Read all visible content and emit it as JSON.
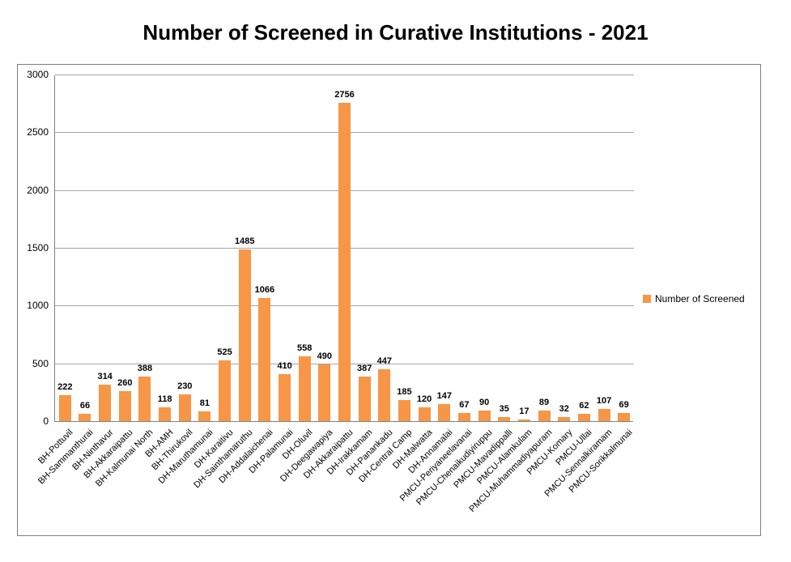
{
  "page": {
    "title": "Number of Screened in Curative Institutions - 2021"
  },
  "chart_data": {
    "type": "bar",
    "title": "Number of Screened in Curative Institutions - 2021",
    "categories": [
      "BH-Pottuvil",
      "BH-Sammanthurai",
      "BH-Ninthavur",
      "BH-Akkaraipattu",
      "BH-Kalmunai North",
      "BH-AMH",
      "BH-Thirukovil",
      "DH-Maruthamunai",
      "DH-Karaitivu",
      "DH-Sainthamaruthu",
      "DH-Addalaichenai",
      "DH-Palamunai",
      "DH-Oluvil",
      "DH-Deegawapiya",
      "DH-Akkaraipattu",
      "DH-Irakkamam",
      "DH-Panankadu",
      "DH-Central Camp",
      "DH-Malwatta",
      "DH-Annamalai",
      "PMCU-Periyaneelavanai",
      "PMCU-Chenaikudiyiruppu",
      "PMCU-Mavadippalli",
      "PMCU-Alamkulam",
      "PMCU-Muhammadiyapuram",
      "PMCU-Komary",
      "PMCU-Ullai",
      "PMCU-Sennalkiramam",
      "PMCU-Sorikkalmunai"
    ],
    "values": [
      222,
      66,
      314,
      260,
      388,
      118,
      230,
      81,
      525,
      1485,
      1066,
      410,
      558,
      490,
      2756,
      387,
      447,
      185,
      120,
      147,
      67,
      90,
      35,
      17,
      89,
      32,
      62,
      107,
      69
    ],
    "series_name": "Number of Screened",
    "legend": {
      "label": "Number of Screened",
      "position": "right"
    },
    "xlabel": "",
    "ylabel": "",
    "ylim": [
      0,
      3000
    ],
    "yticks": [
      0,
      500,
      1000,
      1500,
      2000,
      2500,
      3000
    ],
    "grid": true,
    "colors": {
      "bar": "#F79646",
      "gridline": "#A6A6A6",
      "axis": "#808080",
      "frame_border": "#7F7F7F",
      "text": "#000000"
    }
  }
}
